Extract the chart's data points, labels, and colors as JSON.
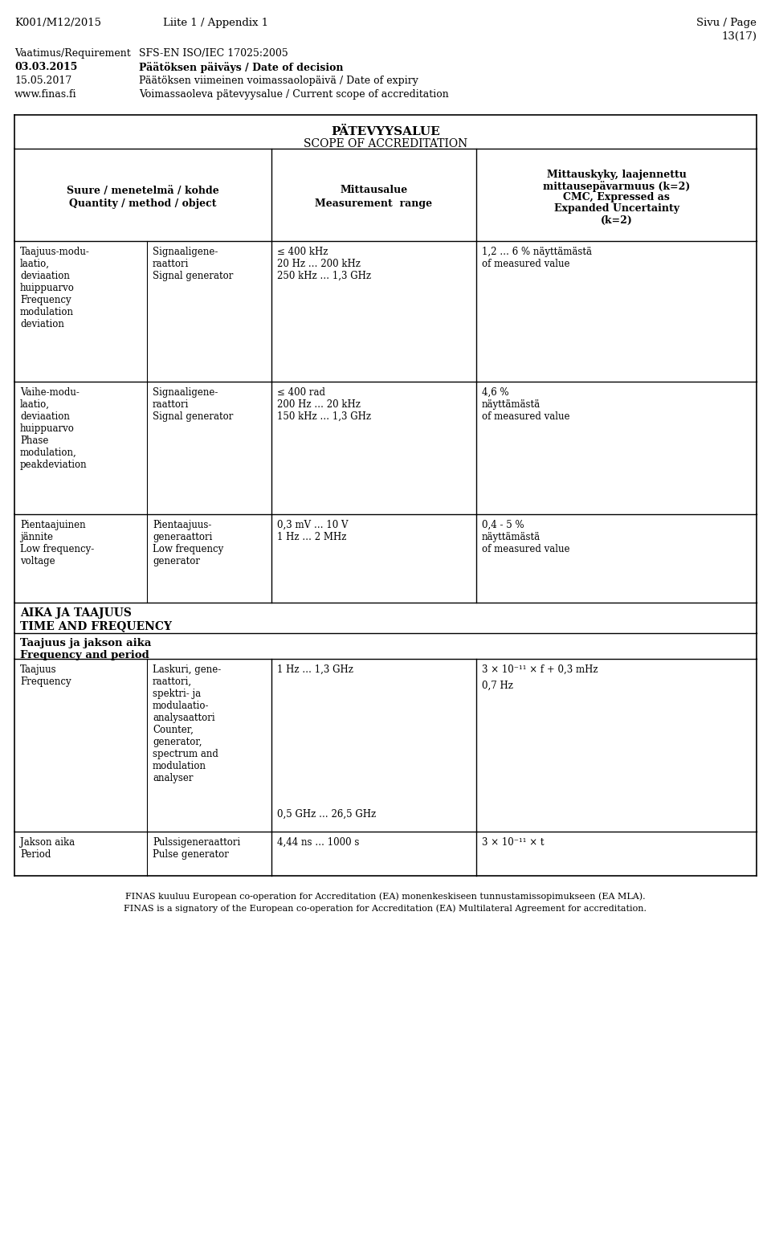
{
  "bg_color": "#ffffff",
  "text_color": "#000000",
  "header_info": {
    "left": "K001/M12/2015",
    "center": "Liite 1 / Appendix 1",
    "right_line1": "Sivu / Page",
    "right_line2": "13(17)"
  },
  "meta_rows": [
    [
      "Vaatimus/Requirement",
      "SFS-EN ISO/IEC 17025:2005",
      false
    ],
    [
      "03.03.2015",
      "Päätöksen päiväys / Date of decision",
      true
    ],
    [
      "15.05.2017",
      "Päätöksen viimeinen voimassaolopäivä / Date of expiry",
      false
    ],
    [
      "www.finas.fi",
      "Voimassaoleva pätevyysalue / Current scope of accreditation",
      false
    ]
  ],
  "scope_title_line1": "PÄTEVYYSALUE",
  "scope_title_line2": "SCOPE OF ACCREDITATION",
  "col_headers": {
    "col1_line1": "Suure / menetelmä / kohde",
    "col1_line2": "Quantity / method / object",
    "col2_line1": "Mittausalue",
    "col2_line2": "Measurement  range",
    "col3_line1": "Mittauskyky, laajennettu",
    "col3_line2": "mittausepävarmuus (k=2)",
    "col3_line3": "CMC, Expressed as",
    "col3_line4": "Expanded Uncertainty",
    "col3_line5": "(k=2)"
  },
  "table_rows": [
    {
      "col1a": "Taajuus-modu-\nlaatio,\ndeviaation\nhuippuarvo\nFrequency\nmodulation\ndeviation",
      "col1b": "Signaaligene-\nraattori\nSignal generator",
      "col2": "≤ 400 kHz\n20 Hz … 200 kHz\n250 kHz … 1,3 GHz",
      "col3": "1,2 … 6 % näyttämästä\nof measured value"
    },
    {
      "col1a": "Vaihe-modu-\nlaatio,\ndeviaation\nhuippuarvo\nPhase\nmodulation,\npeakdeviation",
      "col1b": "Signaaligene-\nraattori\nSignal generator",
      "col2": "≤ 400 rad\n200 Hz … 20 kHz\n150 kHz … 1,3 GHz",
      "col3": "4,6 %\nnäyttämästä\nof measured value"
    },
    {
      "col1a": "Pientaajuinen\njännite\nLow frequency-\nvoltage",
      "col1b": "Pientaajuus-\ngeneraattori\nLow frequency\ngenerator",
      "col2": "0,3 mV … 10 V\n1 Hz … 2 MHz",
      "col3": "0,4 - 5 %\nnäyttämästä\nof measured value"
    }
  ],
  "section_header_line1": "AIKA JA TAAJUUS",
  "section_header_line2": "TIME AND FREQUENCY",
  "subsection_header_line1": "Taajuus ja jakson aika",
  "subsection_header_line2": "Frequency and period",
  "freq_col1a": "Taajuus\nFrequency",
  "freq_col1b": "Laskuri, gene-\nraattori,\nspektri- ja\nmodulaatio-\nanalysaattori\nCounter,\ngenerator,\nspectrum and\nmodulation\nanalyser",
  "freq_col2_top": "1 Hz … 1,3 GHz",
  "freq_col2_bot": "0,5 GHz … 26,5 GHz",
  "freq_col3_top": "3 × 10⁻¹¹ × f + 0,3 mHz",
  "freq_col3_bot": "0,7 Hz",
  "period_col1a": "Jakson aika\nPeriod",
  "period_col1b": "Pulssigeneraattori\nPulse generator",
  "period_col2": "4,44 ns … 1000 s",
  "period_col3": "3 × 10⁻¹¹ × t",
  "footer_line1": "FINAS kuuluu European co-operation for Accreditation (EA) monenkeskiseen tunnustamissopimukseen (EA MLA).",
  "footer_line2": "FINAS is a signatory of the European co-operation for Accreditation (EA) Multilateral Agreement for accreditation."
}
